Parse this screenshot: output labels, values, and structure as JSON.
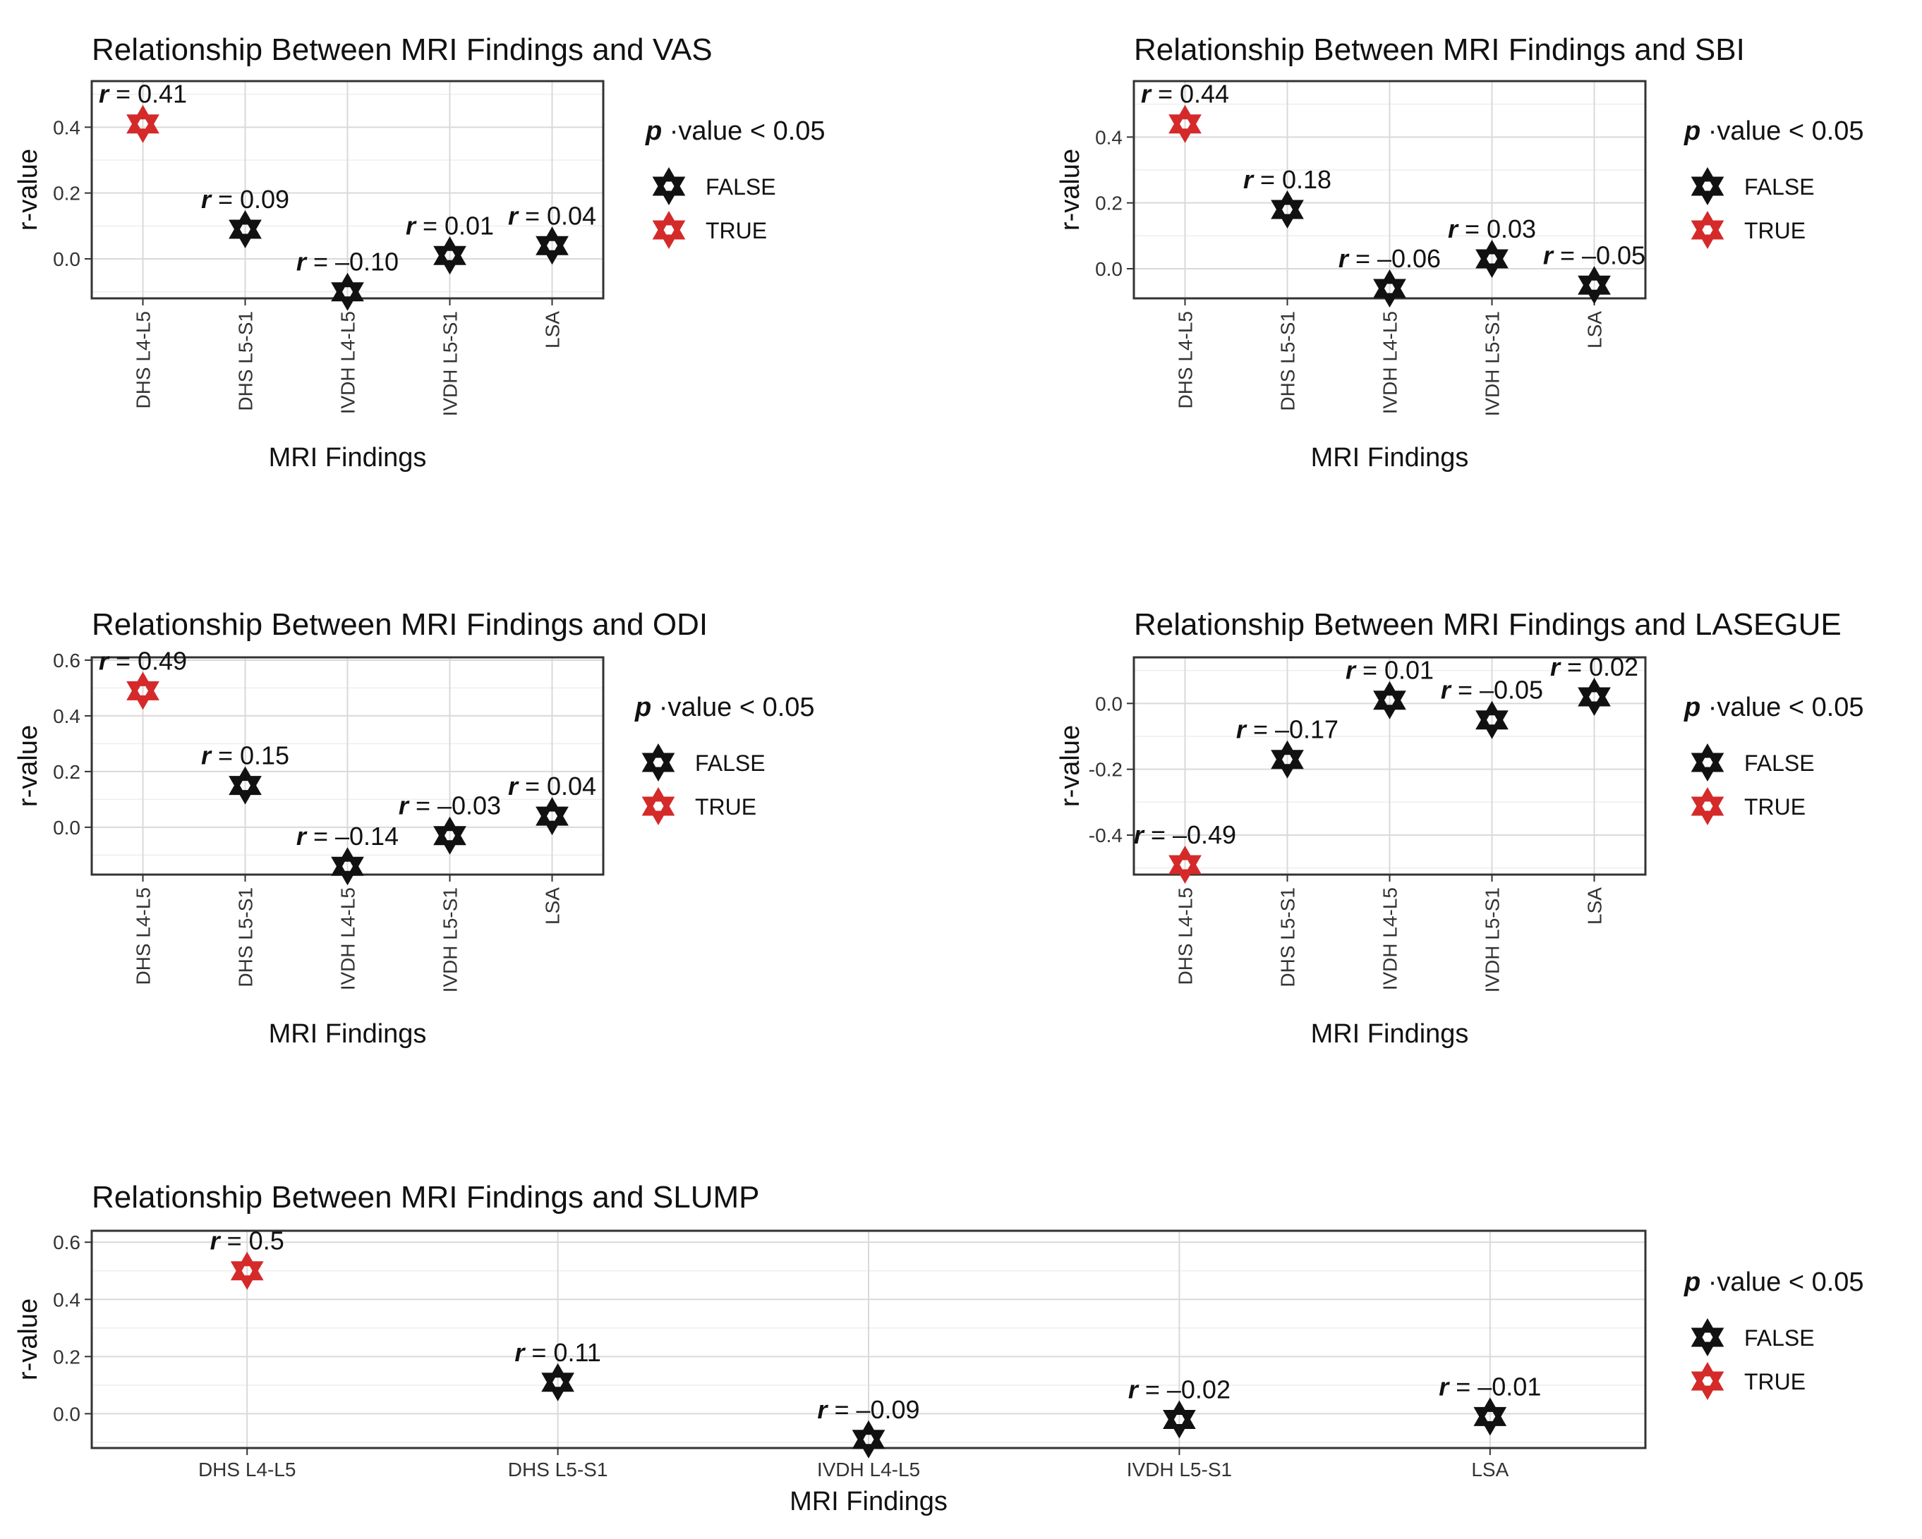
{
  "colors": {
    "false": "#111111",
    "true": "#d42a2a"
  },
  "legend": {
    "title_p": "p",
    "title_rest": "·value < 0.05",
    "false_label": "FALSE",
    "true_label": "TRUE"
  },
  "chart_data": [
    {
      "type": "scatter",
      "title": "Relationship Between MRI Findings and VAS",
      "xlabel": "MRI Findings",
      "ylabel": "r-value",
      "ylim": [
        -0.12,
        0.54
      ],
      "yticks": [
        0.0,
        0.2,
        0.4
      ],
      "ytick_labels": [
        "0.0",
        "0.2",
        "0.4"
      ],
      "rotate_x_labels": true,
      "categories": [
        "DHS L4-L5",
        "DHS L5-S1",
        "IVDH L4-L5",
        "IVDH L5-S1",
        "LSA"
      ],
      "values": [
        0.41,
        0.09,
        -0.1,
        0.01,
        0.04
      ],
      "significant": [
        true,
        false,
        false,
        false,
        false
      ],
      "labels": [
        "0.41",
        "0.09",
        "–0.10",
        "0.01",
        "0.04"
      ]
    },
    {
      "type": "scatter",
      "title": "Relationship Between MRI Findings and SBI",
      "xlabel": "MRI Findings",
      "ylabel": "r-value",
      "ylim": [
        -0.09,
        0.57
      ],
      "yticks": [
        0.0,
        0.2,
        0.4
      ],
      "ytick_labels": [
        "0.0",
        "0.2",
        "0.4"
      ],
      "rotate_x_labels": true,
      "categories": [
        "DHS L4-L5",
        "DHS L5-S1",
        "IVDH L4-L5",
        "IVDH L5-S1",
        "LSA"
      ],
      "values": [
        0.44,
        0.18,
        -0.06,
        0.03,
        -0.05
      ],
      "significant": [
        true,
        false,
        false,
        false,
        false
      ],
      "labels": [
        "0.44",
        "0.18",
        "–0.06",
        "0.03",
        "–0.05"
      ]
    },
    {
      "type": "scatter",
      "title": "Relationship Between MRI Findings and ODI",
      "xlabel": "MRI Findings",
      "ylabel": "r-value",
      "ylim": [
        -0.17,
        0.61
      ],
      "yticks": [
        0.0,
        0.2,
        0.4,
        0.6
      ],
      "ytick_labels": [
        "0.0",
        "0.2",
        "0.4",
        "0.6"
      ],
      "rotate_x_labels": true,
      "categories": [
        "DHS L4-L5",
        "DHS L5-S1",
        "IVDH L4-L5",
        "IVDH L5-S1",
        "LSA"
      ],
      "values": [
        0.49,
        0.15,
        -0.14,
        -0.03,
        0.04
      ],
      "significant": [
        true,
        false,
        false,
        false,
        false
      ],
      "labels": [
        "0.49",
        "0.15",
        "–0.14",
        "–0.03",
        "0.04"
      ]
    },
    {
      "type": "scatter",
      "title": "Relationship Between MRI Findings and LASEGUE",
      "xlabel": "MRI Findings",
      "ylabel": "r-value",
      "ylim": [
        -0.52,
        0.14
      ],
      "yticks": [
        -0.4,
        -0.2,
        0.0
      ],
      "ytick_labels": [
        "-0.4",
        "-0.2",
        "0.0"
      ],
      "rotate_x_labels": true,
      "categories": [
        "DHS L4-L5",
        "DHS L5-S1",
        "IVDH L4-L5",
        "IVDH L5-S1",
        "LSA"
      ],
      "values": [
        -0.49,
        -0.17,
        0.01,
        -0.05,
        0.02
      ],
      "significant": [
        true,
        false,
        false,
        false,
        false
      ],
      "labels": [
        "–0.49",
        "–0.17",
        "0.01",
        "–0.05",
        "0.02"
      ]
    },
    {
      "type": "scatter",
      "title": "Relationship Between MRI Findings and SLUMP",
      "xlabel": "MRI Findings",
      "ylabel": "r-value",
      "ylim": [
        -0.12,
        0.64
      ],
      "yticks": [
        0.0,
        0.2,
        0.4,
        0.6
      ],
      "ytick_labels": [
        "0.0",
        "0.2",
        "0.4",
        "0.6"
      ],
      "rotate_x_labels": false,
      "categories": [
        "DHS L4-L5",
        "DHS L5-S1",
        "IVDH L4-L5",
        "IVDH L5-S1",
        "LSA"
      ],
      "values": [
        0.5,
        0.11,
        -0.09,
        -0.02,
        -0.01
      ],
      "significant": [
        true,
        false,
        false,
        false,
        false
      ],
      "labels": [
        "0.5",
        "0.11",
        "–0.09",
        "–0.02",
        "–0.01"
      ]
    }
  ]
}
